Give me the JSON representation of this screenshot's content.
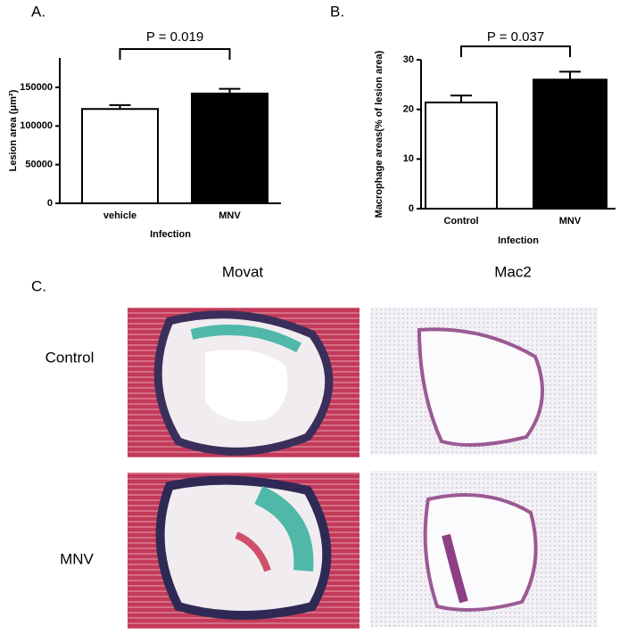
{
  "chart_data": [
    {
      "type": "bar",
      "panel_label": "A.",
      "annotation": "P = 0.019",
      "y_label": "Lesion area (μm²)",
      "x_label": "Infection",
      "categories": [
        "vehicle",
        "MNV"
      ],
      "values": [
        122000,
        142000
      ],
      "errors": [
        5000,
        6000
      ],
      "colors": [
        "#ffffff",
        "#000000"
      ],
      "ylim": [
        0,
        188000
      ],
      "yticks": [
        0,
        50000,
        100000,
        150000
      ]
    },
    {
      "type": "bar",
      "panel_label": "B.",
      "annotation": "P = 0.037",
      "y_label": "Macrophage areas(% of lesion area)",
      "x_label": "Infection",
      "categories": [
        "Control",
        "MNV"
      ],
      "values": [
        21.4,
        26.0
      ],
      "errors": [
        1.4,
        1.6
      ],
      "colors": [
        "#ffffff",
        "#000000"
      ],
      "ylim": [
        0,
        30
      ],
      "yticks": [
        0,
        10,
        20,
        30
      ]
    }
  ],
  "panel_c": {
    "panel_label": "C.",
    "columns": [
      "Movat",
      "Mac2"
    ],
    "rows": [
      "Control",
      "MNV"
    ]
  }
}
